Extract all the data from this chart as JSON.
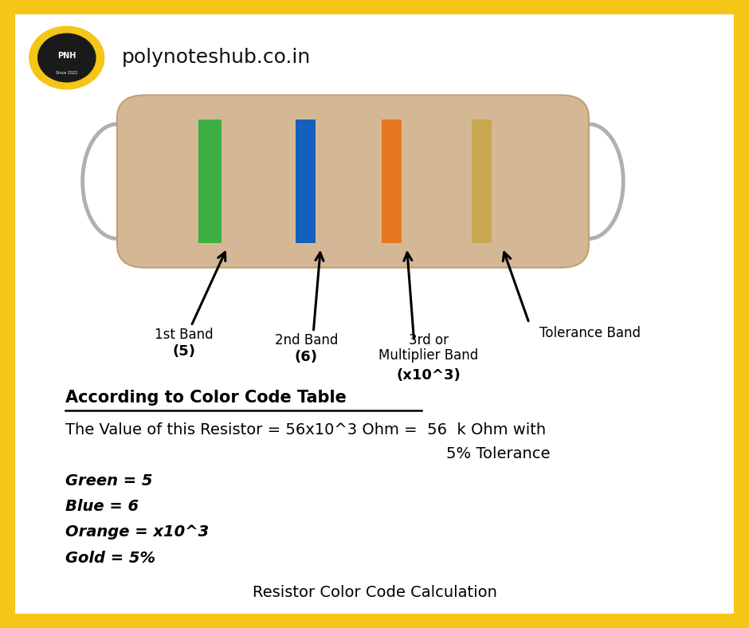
{
  "bg_color": "#ffffff",
  "border_color": "#f5c518",
  "border_width": 18,
  "title_text": "polynoteshub.co.in",
  "title_fontsize": 18,
  "resistor_body_color": "#d4b896",
  "band1_color": "#3cb043",
  "band2_color": "#1560bd",
  "band3_color": "#e87722",
  "band4_color": "#c8a951",
  "according_text": "According to Color Code Table",
  "value_line1": "The Value of this Resistor = 56x10^3 Ohm =  56  k Ohm with",
  "value_line2": "5% Tolerance",
  "color_labels": [
    "Green = 5",
    "Blue = 6",
    "Orange = x10^3",
    "Gold = 5%"
  ],
  "footer_text": "Resistor Color Code Calculation",
  "footer_fontsize": 14,
  "text_fontsize": 15,
  "label_fontsize": 13
}
